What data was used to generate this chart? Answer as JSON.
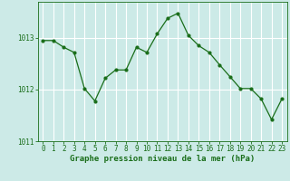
{
  "x": [
    0,
    1,
    2,
    3,
    4,
    5,
    6,
    7,
    8,
    9,
    10,
    11,
    12,
    13,
    14,
    15,
    16,
    17,
    18,
    19,
    20,
    21,
    22,
    23
  ],
  "y": [
    1012.95,
    1012.95,
    1012.82,
    1012.72,
    1012.02,
    1011.78,
    1012.22,
    1012.38,
    1012.38,
    1012.82,
    1012.72,
    1013.08,
    1013.38,
    1013.48,
    1013.05,
    1012.85,
    1012.72,
    1012.48,
    1012.25,
    1012.02,
    1012.02,
    1011.82,
    1011.42,
    1011.82
  ],
  "line_color": "#1a6e1a",
  "marker": "o",
  "marker_size": 2,
  "bg_color": "#cceae7",
  "grid_color": "#ffffff",
  "xlabel": "Graphe pression niveau de la mer (hPa)",
  "xlabel_color": "#1a6e1a",
  "tick_color": "#1a6e1a",
  "ylim": [
    1011.0,
    1013.7
  ],
  "xlim": [
    -0.5,
    23.5
  ],
  "yticks": [
    1011,
    1012,
    1013
  ],
  "xticks": [
    0,
    1,
    2,
    3,
    4,
    5,
    6,
    7,
    8,
    9,
    10,
    11,
    12,
    13,
    14,
    15,
    16,
    17,
    18,
    19,
    20,
    21,
    22,
    23
  ],
  "xlabel_fontsize": 6.5,
  "tick_fontsize": 5.5,
  "linewidth": 0.9
}
